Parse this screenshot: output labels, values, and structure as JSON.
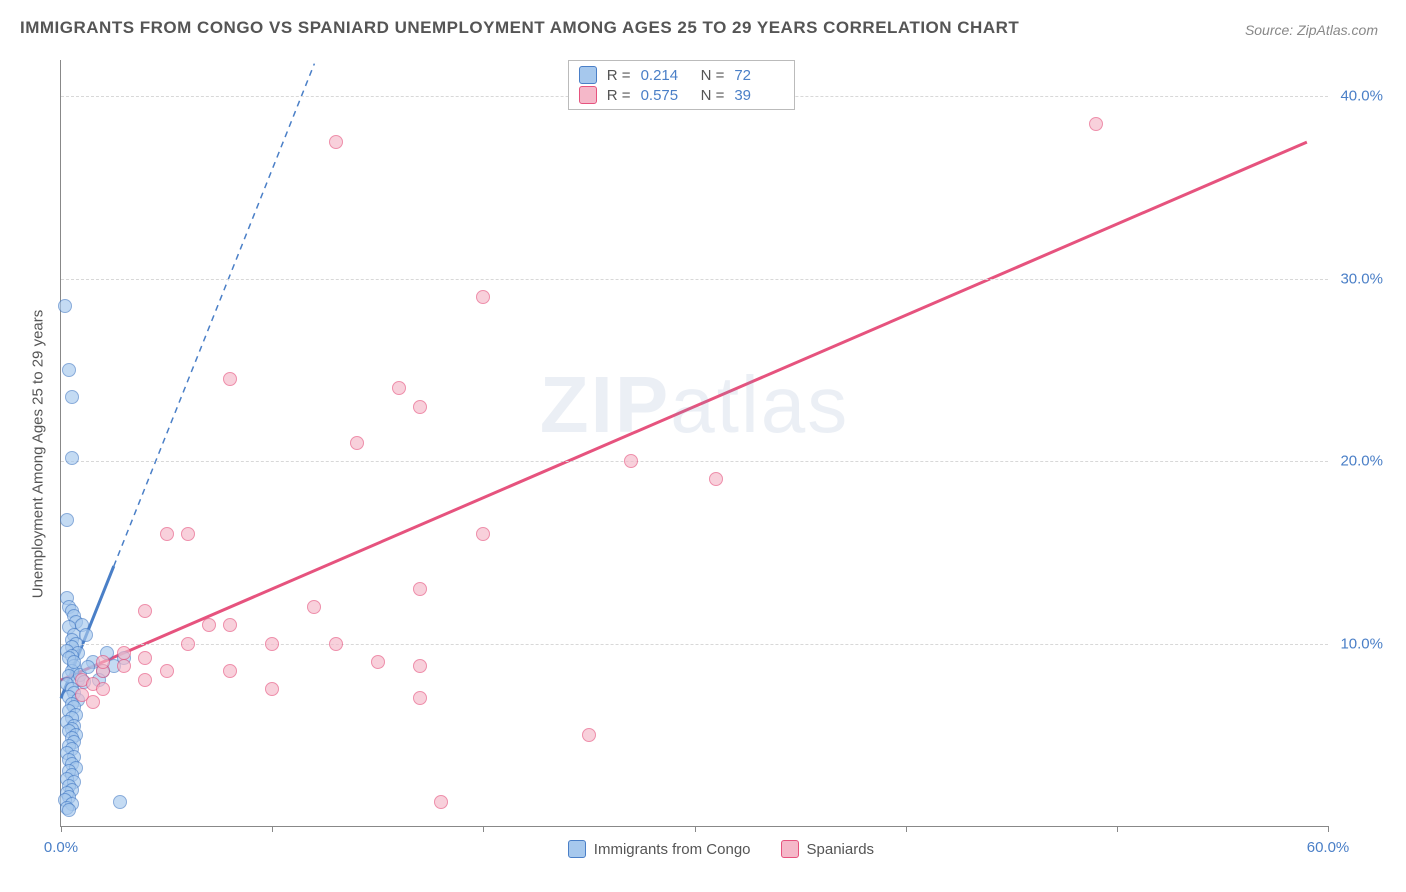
{
  "chart": {
    "type": "scatter",
    "title": "IMMIGRANTS FROM CONGO VS SPANIARD UNEMPLOYMENT AMONG AGES 25 TO 29 YEARS CORRELATION CHART",
    "source": "Source: ZipAtlas.com",
    "ylabel": "Unemployment Among Ages 25 to 29 years",
    "watermark": "ZIPatlas",
    "background_color": "#ffffff",
    "grid_color": "#d8d8d8",
    "axis_color": "#888888",
    "text_color": "#555555",
    "value_color": "#4a7fc7",
    "xlim": [
      0,
      60
    ],
    "ylim": [
      0,
      42
    ],
    "x_ticks": [
      0,
      10,
      20,
      30,
      40,
      50,
      60
    ],
    "y_gridlines": [
      10,
      20,
      30,
      40
    ],
    "x_tick_labels": {
      "0": "0.0%",
      "60": "60.0%"
    },
    "y_tick_labels": {
      "10": "10.0%",
      "20": "20.0%",
      "30": "30.0%",
      "40": "40.0%"
    },
    "series": [
      {
        "name": "Immigrants from Congo",
        "label": "Immigrants from Congo",
        "color_fill": "#a6c8ed",
        "color_stroke": "#4a7fc7",
        "marker_size": 14,
        "R": "0.214",
        "N": "72",
        "regression": {
          "slope": 2.9,
          "intercept": 7.0,
          "x1": 0,
          "x2": 2.5,
          "dash_x2": 12
        },
        "points": [
          [
            0.2,
            28.5
          ],
          [
            0.4,
            25.0
          ],
          [
            0.5,
            23.5
          ],
          [
            0.3,
            16.8
          ],
          [
            0.5,
            20.2
          ],
          [
            0.3,
            12.5
          ],
          [
            0.4,
            12.0
          ],
          [
            0.5,
            11.8
          ],
          [
            0.6,
            11.5
          ],
          [
            0.7,
            11.2
          ],
          [
            0.4,
            10.9
          ],
          [
            0.6,
            10.5
          ],
          [
            0.5,
            10.2
          ],
          [
            0.7,
            10.0
          ],
          [
            0.5,
            9.8
          ],
          [
            0.3,
            9.6
          ],
          [
            0.8,
            9.5
          ],
          [
            0.5,
            9.3
          ],
          [
            0.4,
            9.2
          ],
          [
            1.0,
            11.0
          ],
          [
            1.2,
            10.5
          ],
          [
            0.6,
            8.8
          ],
          [
            0.5,
            8.5
          ],
          [
            0.4,
            8.2
          ],
          [
            0.8,
            8.0
          ],
          [
            0.3,
            7.8
          ],
          [
            0.5,
            7.5
          ],
          [
            0.6,
            7.3
          ],
          [
            0.4,
            7.1
          ],
          [
            0.8,
            6.9
          ],
          [
            0.5,
            6.7
          ],
          [
            0.6,
            6.5
          ],
          [
            0.4,
            6.3
          ],
          [
            0.7,
            6.1
          ],
          [
            0.5,
            5.9
          ],
          [
            0.3,
            5.7
          ],
          [
            0.6,
            5.5
          ],
          [
            0.5,
            5.3
          ],
          [
            0.4,
            5.2
          ],
          [
            0.7,
            5.0
          ],
          [
            0.5,
            4.8
          ],
          [
            0.6,
            4.6
          ],
          [
            0.4,
            4.4
          ],
          [
            0.5,
            4.2
          ],
          [
            0.3,
            4.0
          ],
          [
            0.6,
            3.8
          ],
          [
            0.4,
            3.6
          ],
          [
            0.5,
            3.4
          ],
          [
            0.7,
            3.2
          ],
          [
            0.4,
            3.0
          ],
          [
            0.5,
            2.8
          ],
          [
            0.3,
            2.6
          ],
          [
            0.6,
            2.4
          ],
          [
            0.4,
            2.2
          ],
          [
            0.5,
            2.0
          ],
          [
            0.3,
            1.8
          ],
          [
            0.4,
            1.6
          ],
          [
            1.5,
            9.0
          ],
          [
            2.0,
            8.5
          ],
          [
            2.5,
            8.8
          ],
          [
            3.0,
            9.2
          ],
          [
            0.9,
            8.3
          ],
          [
            1.1,
            7.9
          ],
          [
            1.3,
            8.7
          ],
          [
            0.2,
            1.4
          ],
          [
            2.8,
            1.3
          ],
          [
            0.5,
            1.2
          ],
          [
            0.3,
            1.0
          ],
          [
            0.4,
            0.9
          ],
          [
            1.8,
            8.0
          ],
          [
            2.2,
            9.5
          ],
          [
            0.6,
            9.0
          ]
        ]
      },
      {
        "name": "Spaniards",
        "label": "Spaniards",
        "color_fill": "#f5b8c9",
        "color_stroke": "#e6537e",
        "marker_size": 14,
        "R": "0.575",
        "N": "39",
        "regression": {
          "slope": 0.5,
          "intercept": 8.0,
          "x1": 0,
          "x2": 59
        },
        "points": [
          [
            13,
            37.5
          ],
          [
            49,
            38.5
          ],
          [
            20,
            29.0
          ],
          [
            8,
            24.5
          ],
          [
            16,
            24.0
          ],
          [
            17,
            23.0
          ],
          [
            14,
            21.0
          ],
          [
            27,
            20.0
          ],
          [
            20,
            16.0
          ],
          [
            31,
            19.0
          ],
          [
            5,
            16.0
          ],
          [
            6,
            16.0
          ],
          [
            17,
            13.0
          ],
          [
            12,
            12.0
          ],
          [
            7,
            11.0
          ],
          [
            8,
            11.0
          ],
          [
            4,
            11.8
          ],
          [
            6,
            10.0
          ],
          [
            10,
            10.0
          ],
          [
            13,
            10.0
          ],
          [
            4,
            9.2
          ],
          [
            2,
            8.5
          ],
          [
            3,
            8.8
          ],
          [
            5,
            8.5
          ],
          [
            8,
            8.5
          ],
          [
            10,
            7.5
          ],
          [
            15,
            9.0
          ],
          [
            17,
            8.8
          ],
          [
            17,
            7.0
          ],
          [
            25,
            5.0
          ],
          [
            18,
            1.3
          ],
          [
            1,
            8.0
          ],
          [
            1.5,
            7.8
          ],
          [
            2,
            7.5
          ],
          [
            1,
            7.2
          ],
          [
            1.5,
            6.8
          ],
          [
            2,
            9.0
          ],
          [
            3,
            9.5
          ],
          [
            4,
            8.0
          ]
        ]
      }
    ],
    "legend_top": {
      "rows": [
        {
          "swatch": 0,
          "r_label": "R =",
          "n_label": "N ="
        },
        {
          "swatch": 1,
          "r_label": "R =",
          "n_label": "N ="
        }
      ]
    },
    "legend_bottom": {
      "items": [
        {
          "swatch": 0
        },
        {
          "swatch": 1
        }
      ]
    }
  }
}
